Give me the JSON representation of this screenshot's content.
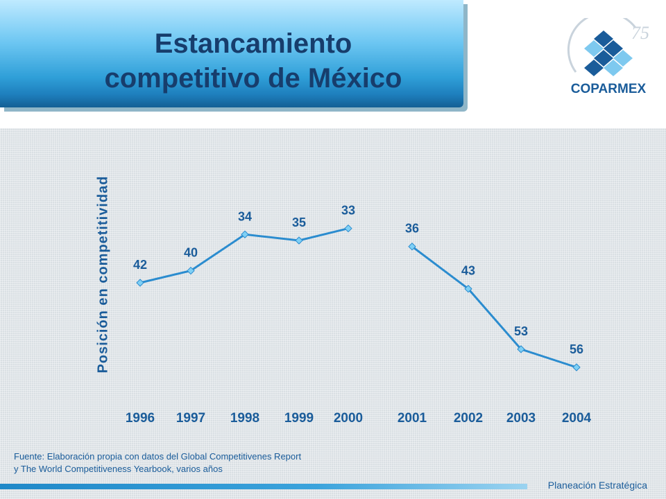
{
  "header": {
    "title_line1": "Estancamiento",
    "title_line2": "competitivo de México"
  },
  "logo": {
    "name": "COPARMEX",
    "mark_number": "75",
    "icon": "coparmex-logo-icon"
  },
  "chart_data": {
    "type": "line",
    "title": "",
    "xlabel": "",
    "ylabel": "Posición en competitividad",
    "y_inverted": true,
    "grid": false,
    "legend": "none",
    "line_color": "#2b8ccf",
    "marker_color": "#7fd0f5",
    "label_color": "#1a5c9a",
    "segments": [
      {
        "x": [
          "1996",
          "1997",
          "1998",
          "1999",
          "2000"
        ],
        "values": [
          42,
          40,
          34,
          35,
          33
        ]
      },
      {
        "x": [
          "2001",
          "2002",
          "2003",
          "2004"
        ],
        "values": [
          36,
          43,
          53,
          56
        ]
      }
    ],
    "categories": [
      "1996",
      "1997",
      "1998",
      "1999",
      "2000",
      "2001",
      "2002",
      "2003",
      "2004"
    ]
  },
  "footer": {
    "source_line1": "Fuente: Elaboración propia con datos del Global Competitivenes Report",
    "source_line2": "y The World Competitiveness Yearbook, varios años",
    "right_label": "Planeación Estratégica"
  }
}
